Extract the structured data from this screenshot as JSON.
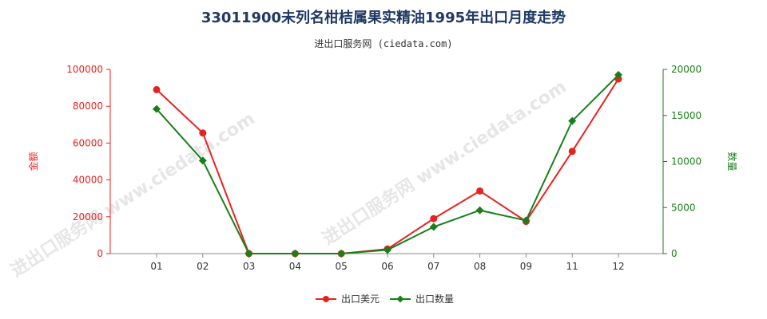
{
  "title": "33011900未列名柑桔属果实精油1995年出口月度走势",
  "subtitle": "进出口服务网 (ciedata.com)",
  "watermark": "进出口服务网 www.ciedata.com",
  "colors": {
    "left": "#e8231f",
    "right": "#1a7f1a",
    "axis": "#888888",
    "title": "#1f3864"
  },
  "chart_data": {
    "type": "line",
    "categories": [
      "01",
      "02",
      "03",
      "04",
      "05",
      "06",
      "07",
      "08",
      "09",
      "11",
      "12"
    ],
    "y_left": {
      "label": "金额",
      "ylim": [
        0,
        100000
      ],
      "ticks": [
        0,
        20000,
        40000,
        60000,
        80000,
        100000
      ],
      "tick_labels": [
        "0",
        "20000",
        "40000",
        "60000",
        "80000",
        "100000"
      ]
    },
    "y_right": {
      "label": "数量",
      "ylim": [
        0,
        20000
      ],
      "ticks": [
        0,
        5000,
        10000,
        15000,
        20000
      ],
      "tick_labels": [
        "0",
        "5000",
        "10000",
        "15000",
        "20000"
      ]
    },
    "series": [
      {
        "name": "出口美元",
        "axis": "left",
        "marker": "circle",
        "values": [
          89000,
          65500,
          0,
          0,
          0,
          2500,
          19000,
          34000,
          17500,
          55500,
          94800
        ]
      },
      {
        "name": "出口数量",
        "axis": "right",
        "marker": "diamond",
        "values": [
          15700,
          10100,
          0,
          0,
          0,
          400,
          2900,
          4700,
          3600,
          14400,
          19400
        ]
      }
    ],
    "legend_position": "bottom",
    "grid": false
  }
}
